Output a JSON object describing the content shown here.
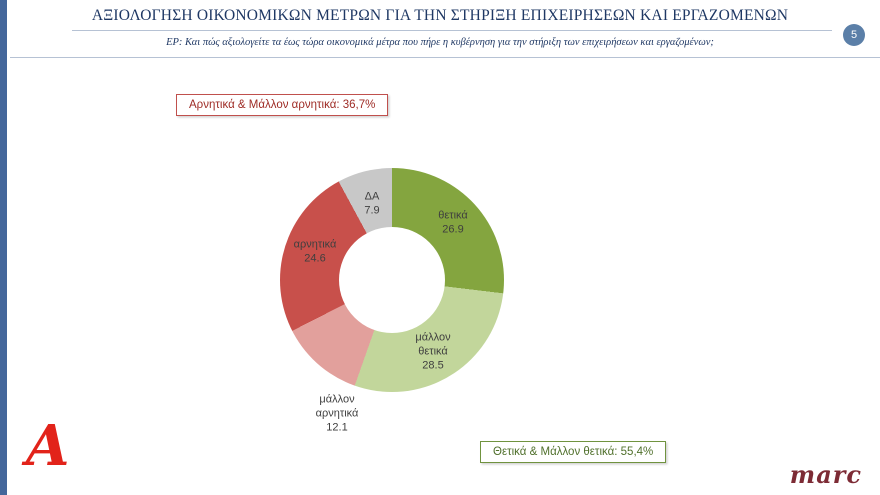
{
  "slide": {
    "title": "ΑΞΙΟΛΟΓΗΣΗ ΟΙΚΟΝΟΜΙΚΩΝ ΜΕΤΡΩΝ ΓΙΑ ΤΗΝ ΣΤΗΡΙΞΗ ΕΠΙΧΕΙΡΗΣΕΩΝ ΚΑΙ ΕΡΓΑΖΟΜΕΝΩΝ",
    "subtitle": "ΕΡ: Και πώς αξιολογείτε τα έως τώρα οικονομικά μέτρα που πήρε η κυβέρνηση για την στήριξη των επιχειρήσεων και εργαζομένων;",
    "page_number": "5"
  },
  "callouts": {
    "negative": {
      "label": "Αρνητικά & Μάλλον αρνητικά: 36,7%",
      "border_color": "#C0504D",
      "text_color": "#9E2B25"
    },
    "positive": {
      "label": "Θετικά & Μάλλον θετικά: 55,4%",
      "border_color": "#70933F",
      "text_color": "#50702C"
    }
  },
  "chart_data": {
    "type": "pie",
    "subtype": "donut",
    "title": "",
    "start_angle_deg": 0,
    "direction": "clockwise",
    "hole_ratio": 0.47,
    "legend": "none",
    "segments": [
      {
        "label": "θετικά",
        "value": 26.9,
        "color": "#84A53F"
      },
      {
        "label": "μάλλον θετικά",
        "value": 28.5,
        "color": "#C2D69B"
      },
      {
        "label": "μάλλον αρνητικά",
        "value": 12.1,
        "color": "#E2A09C"
      },
      {
        "label": "αρνητικά",
        "value": 24.6,
        "color": "#C8504B"
      },
      {
        "label": "ΔΑ",
        "value": 7.9,
        "color": "#C8C8C8"
      }
    ]
  },
  "logos": {
    "alpha_letter": "A",
    "marc_text": "marc"
  }
}
